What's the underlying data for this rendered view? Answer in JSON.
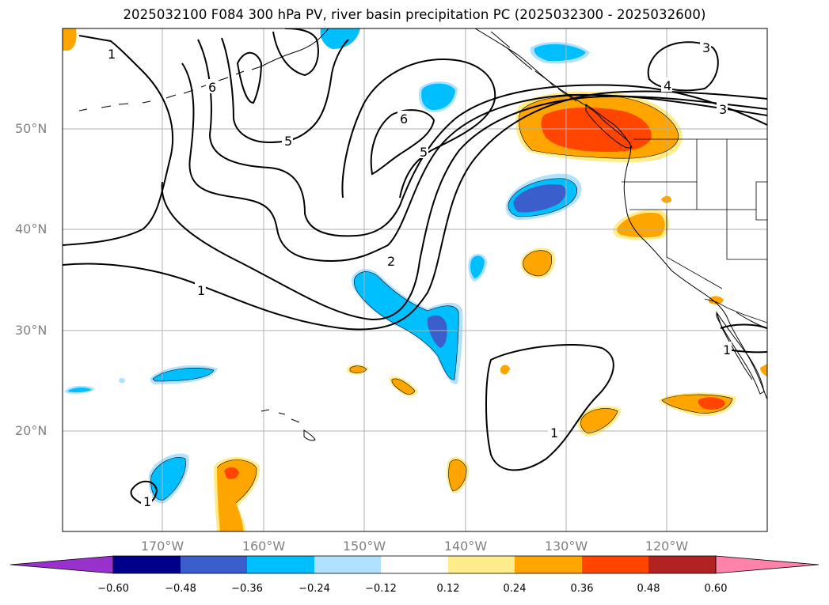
{
  "title": "2025032100 F084 300 hPa PV, river basin precipitation PC (2025032300 - 2025032600)",
  "lat_labels": [
    "50°N",
    "40°N",
    "30°N",
    "20°N"
  ],
  "lon_labels": [
    "170°W",
    "160°W",
    "150°W",
    "140°W",
    "130°W",
    "120°W"
  ],
  "contour_labels": [
    "1",
    "1",
    "1",
    "1",
    "1",
    "2",
    "3",
    "3",
    "4",
    "5",
    "5",
    "6",
    "6"
  ],
  "colorbar": {
    "ticks": [
      "−0.60",
      "−0.48",
      "−0.36",
      "−0.24",
      "−0.12",
      "0.12",
      "0.24",
      "0.36",
      "0.48",
      "0.60"
    ],
    "colors": [
      "#9932cc",
      "#00008b",
      "#3a5fcd",
      "#00bfff",
      "#b0e2ff",
      "#ffffff",
      "#ffec8b",
      "#ffa500",
      "#ff4500",
      "#b22222",
      "#ff82ab"
    ]
  },
  "palette": {
    "light_blue": "#b0e2ff",
    "blue": "#00bfff",
    "dark_blue": "#3a5fcd",
    "yellow": "#ffec8b",
    "orange": "#ffa500",
    "red_orange": "#ff4500"
  }
}
